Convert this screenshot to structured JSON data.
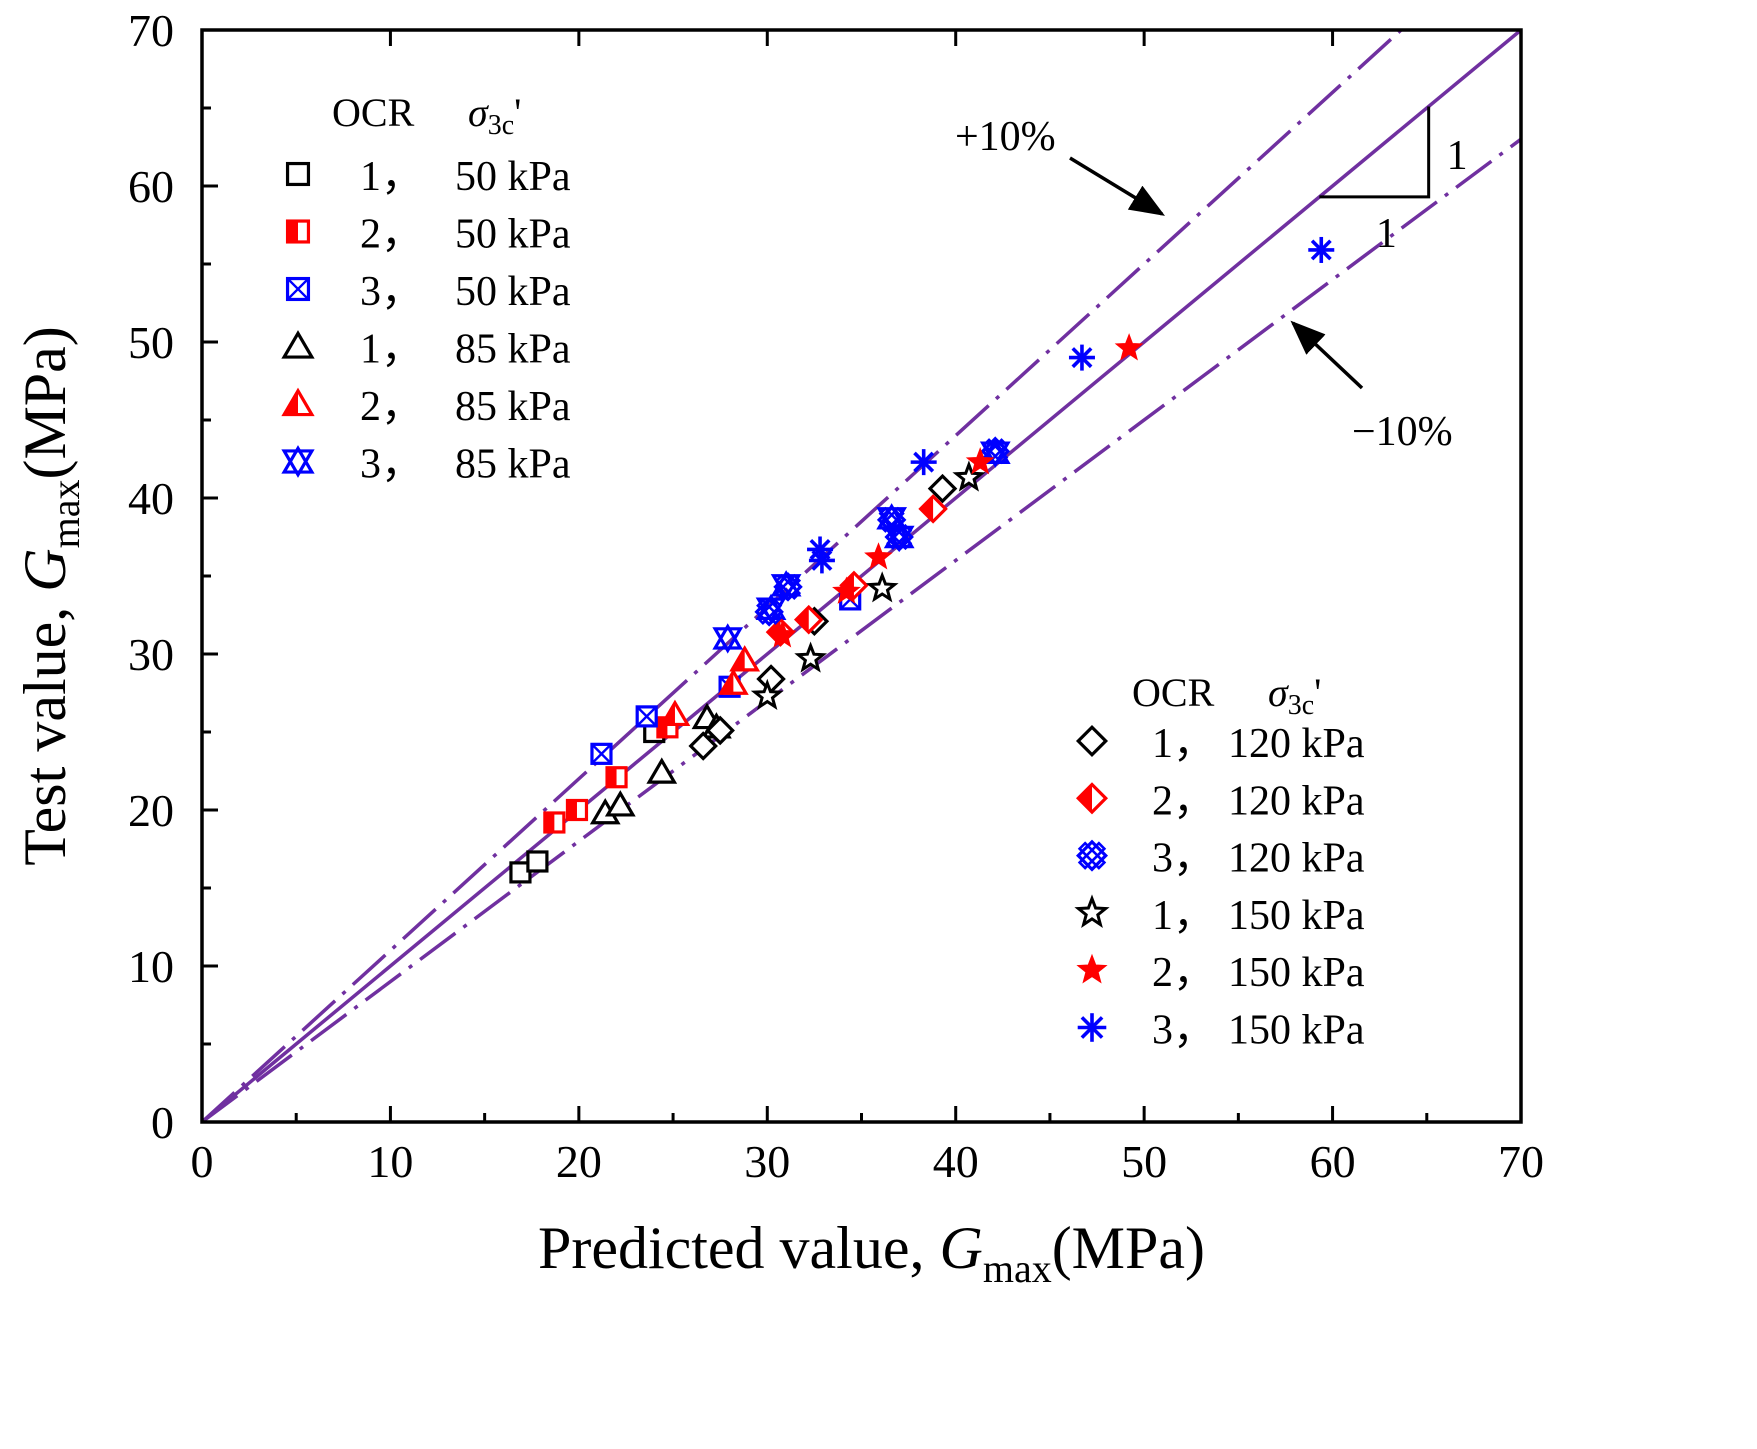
{
  "chart_data": {
    "type": "scatter",
    "title": "",
    "xlabel": {
      "prefix": "Predicted value, ",
      "symbol": "G",
      "subscript": "max",
      "suffix": "(MPa)"
    },
    "ylabel": {
      "prefix": "Test value, ",
      "symbol": "G",
      "subscript": "max",
      "suffix": "(MPa)"
    },
    "xlim": [
      0,
      70
    ],
    "ylim": [
      0,
      70
    ],
    "xticks": [
      0,
      10,
      20,
      30,
      40,
      50,
      60,
      70
    ],
    "yticks": [
      0,
      10,
      20,
      30,
      40,
      50,
      60,
      70
    ],
    "grid": false,
    "legend_header": {
      "ocr": "OCR",
      "sigma": "σ",
      "sigma_sub": "3c",
      "sigma_prime": "'"
    },
    "reference_lines": [
      {
        "name": "1:1 line",
        "slope": 1.0,
        "style": "solid"
      },
      {
        "name": "+10%",
        "slope": 1.1,
        "style": "dash-dot"
      },
      {
        "name": "-10%",
        "slope": 0.9,
        "style": "dash-dot"
      }
    ],
    "annotations": {
      "plus": "+10%",
      "minus": "−10%",
      "slope_rise": "1",
      "slope_run": "1"
    },
    "colors": {
      "black": "#000000",
      "red": "#ff0000",
      "blue": "#0000ff",
      "line": "#7030a0"
    },
    "series": [
      {
        "ocr": "1",
        "stress": "50 kPa",
        "label_ocr": "1，",
        "label_stress": "50 kPa",
        "marker": "square",
        "color": "#000000",
        "points": [
          [
            16.9,
            16.0
          ],
          [
            17.8,
            16.7
          ],
          [
            24.0,
            25.0
          ]
        ]
      },
      {
        "ocr": "2",
        "stress": "50 kPa",
        "label_ocr": "2，",
        "label_stress": "50 kPa",
        "marker": "square-half",
        "color": "#ff0000",
        "points": [
          [
            18.7,
            19.2
          ],
          [
            19.9,
            20.0
          ],
          [
            22.0,
            22.1
          ],
          [
            24.7,
            25.3
          ]
        ]
      },
      {
        "ocr": "3",
        "stress": "50 kPa",
        "label_ocr": "3，",
        "label_stress": "50 kPa",
        "marker": "square-x",
        "color": "#0000ff",
        "points": [
          [
            21.2,
            23.6
          ],
          [
            23.6,
            26.0
          ],
          [
            28.0,
            27.9
          ],
          [
            34.4,
            33.5
          ]
        ]
      },
      {
        "ocr": "1",
        "stress": "85 kPa",
        "label_ocr": "1，",
        "label_stress": "85 kPa",
        "marker": "triangle",
        "color": "#000000",
        "points": [
          [
            21.4,
            19.8
          ],
          [
            22.2,
            20.3
          ],
          [
            24.4,
            22.4
          ],
          [
            26.8,
            25.9
          ],
          [
            27.3,
            25.3
          ]
        ]
      },
      {
        "ocr": "2",
        "stress": "85 kPa",
        "label_ocr": "2，",
        "label_stress": "85 kPa",
        "marker": "triangle-half",
        "color": "#ff0000",
        "points": [
          [
            25.1,
            26.1
          ],
          [
            28.2,
            28.1
          ],
          [
            28.8,
            29.6
          ]
        ]
      },
      {
        "ocr": "3",
        "stress": "85 kPa",
        "label_ocr": "3，",
        "label_stress": "85 kPa",
        "marker": "triangle-x",
        "color": "#0000ff",
        "points": [
          [
            27.9,
            31.0
          ],
          [
            30.2,
            32.9
          ],
          [
            31.0,
            34.4
          ],
          [
            36.6,
            38.7
          ],
          [
            37.0,
            37.5
          ],
          [
            42.1,
            42.9
          ]
        ]
      },
      {
        "ocr": "1",
        "stress": "120 kPa",
        "label_ocr": "1，",
        "label_stress": "120 kPa",
        "marker": "diamond",
        "color": "#000000",
        "points": [
          [
            26.6,
            24.1
          ],
          [
            27.5,
            25.1
          ],
          [
            30.2,
            28.4
          ],
          [
            32.5,
            32.1
          ],
          [
            39.3,
            40.6
          ]
        ]
      },
      {
        "ocr": "2",
        "stress": "120 kPa",
        "label_ocr": "2，",
        "label_stress": "120 kPa",
        "marker": "diamond-half",
        "color": "#ff0000",
        "points": [
          [
            30.7,
            31.4
          ],
          [
            32.2,
            32.2
          ],
          [
            34.6,
            34.4
          ],
          [
            38.8,
            39.3
          ]
        ]
      },
      {
        "ocr": "3",
        "stress": "120 kPa",
        "label_ocr": "3，",
        "label_stress": "120 kPa",
        "marker": "diamond-x",
        "color": "#0000ff",
        "points": [
          [
            30.1,
            32.7
          ],
          [
            31.1,
            34.3
          ],
          [
            36.6,
            38.6
          ],
          [
            37.0,
            37.5
          ],
          [
            42.1,
            43.0
          ]
        ]
      },
      {
        "ocr": "1",
        "stress": "150 kPa",
        "label_ocr": "1，",
        "label_stress": "150 kPa",
        "marker": "star-open",
        "color": "#000000",
        "points": [
          [
            30.0,
            27.3
          ],
          [
            32.3,
            29.7
          ],
          [
            36.1,
            34.2
          ],
          [
            40.7,
            41.3
          ]
        ]
      },
      {
        "ocr": "2",
        "stress": "150 kPa",
        "label_ocr": "2，",
        "label_stress": "150 kPa",
        "marker": "star-filled",
        "color": "#ff0000",
        "points": [
          [
            30.8,
            31.2
          ],
          [
            34.2,
            34.0
          ],
          [
            35.9,
            36.2
          ],
          [
            41.3,
            42.3
          ],
          [
            49.2,
            49.6
          ]
        ]
      },
      {
        "ocr": "3",
        "stress": "150 kPa",
        "label_ocr": "3，",
        "label_stress": "150 kPa",
        "marker": "asterisk",
        "color": "#0000ff",
        "points": [
          [
            32.8,
            36.7
          ],
          [
            32.9,
            36.0
          ],
          [
            38.3,
            42.3
          ],
          [
            46.7,
            49.0
          ],
          [
            59.4,
            55.9
          ]
        ]
      }
    ]
  }
}
